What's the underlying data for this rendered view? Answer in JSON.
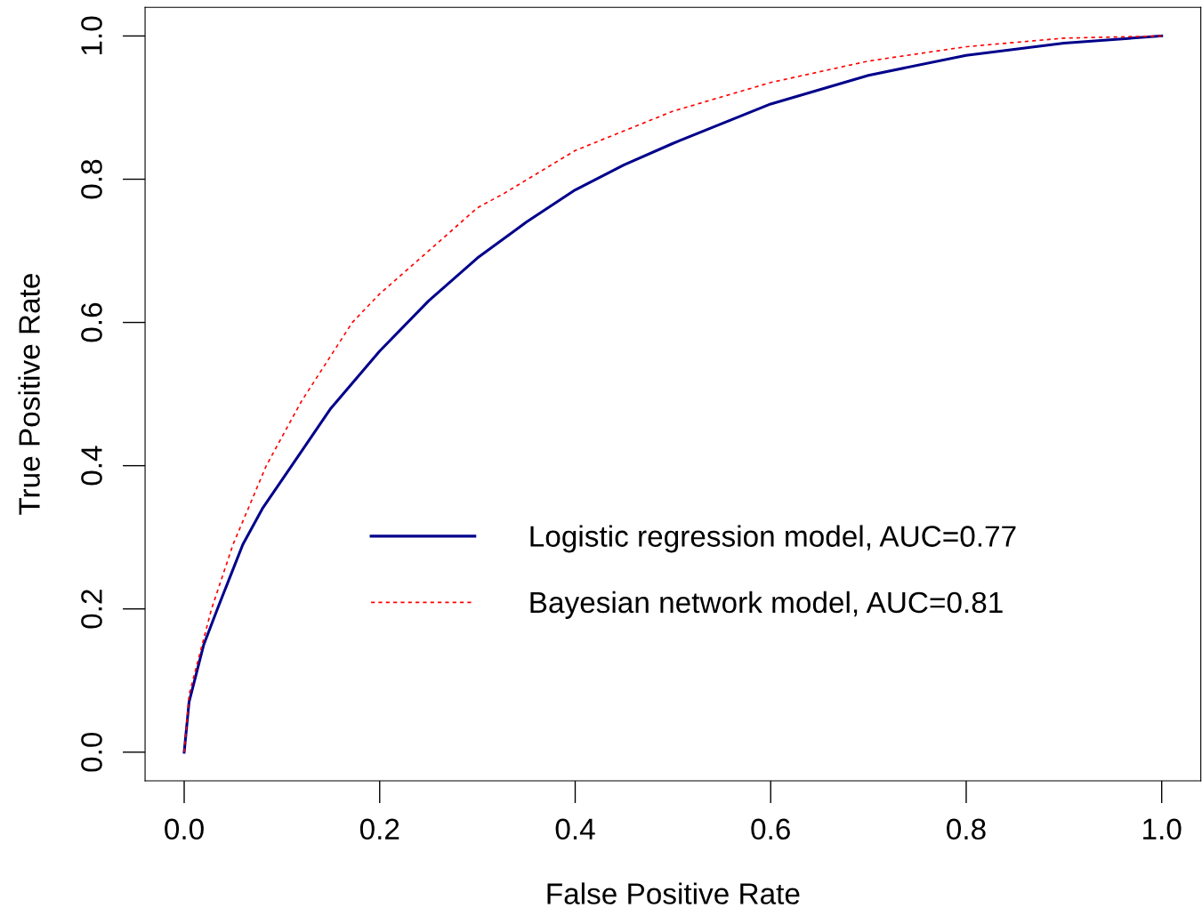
{
  "chart_data": {
    "type": "line",
    "xlabel": "False Positive Rate",
    "ylabel": "True Positive Rate",
    "xlim": [
      -0.04,
      1.04
    ],
    "ylim": [
      -0.04,
      1.04
    ],
    "xticks": [
      {
        "value": 0,
        "label": "0.0"
      },
      {
        "value": 0.2,
        "label": "0.2"
      },
      {
        "value": 0.4,
        "label": "0.4"
      },
      {
        "value": 0.6,
        "label": "0.6"
      },
      {
        "value": 0.8,
        "label": "0.8"
      },
      {
        "value": 1,
        "label": "1.0"
      }
    ],
    "yticks": [
      {
        "value": 0,
        "label": "0.0"
      },
      {
        "value": 0.2,
        "label": "0.2"
      },
      {
        "value": 0.4,
        "label": "0.4"
      },
      {
        "value": 0.6,
        "label": "0.6"
      },
      {
        "value": 0.8,
        "label": "0.8"
      },
      {
        "value": 1,
        "label": "1.0"
      }
    ],
    "grid": false,
    "legend": "bottom",
    "marker": "none",
    "series": [
      {
        "name": "Logistic regression model, AUC=0.77",
        "color": "#00008b",
        "line_style": "solid",
        "x": [
          0,
          0.005,
          0.02,
          0.034,
          0.06,
          0.08,
          0.11,
          0.15,
          0.2,
          0.25,
          0.3,
          0.35,
          0.4,
          0.45,
          0.5,
          0.6,
          0.7,
          0.8,
          0.9,
          1.0
        ],
        "values": [
          0,
          0.07,
          0.15,
          0.2,
          0.29,
          0.34,
          0.4,
          0.48,
          0.56,
          0.63,
          0.69,
          0.74,
          0.785,
          0.82,
          0.85,
          0.905,
          0.945,
          0.973,
          0.99,
          1.0
        ]
      },
      {
        "name": "Bayesian network model, AUC=0.81",
        "color": "#ff0000",
        "line_style": "dashed",
        "x": [
          0,
          0.005,
          0.028,
          0.05,
          0.084,
          0.12,
          0.172,
          0.2,
          0.25,
          0.3,
          0.327,
          0.4,
          0.5,
          0.6,
          0.7,
          0.8,
          0.9,
          1.0
        ],
        "values": [
          0,
          0.08,
          0.2,
          0.29,
          0.4,
          0.49,
          0.6,
          0.64,
          0.7,
          0.76,
          0.78,
          0.84,
          0.895,
          0.935,
          0.965,
          0.985,
          0.997,
          1.0
        ]
      }
    ]
  }
}
